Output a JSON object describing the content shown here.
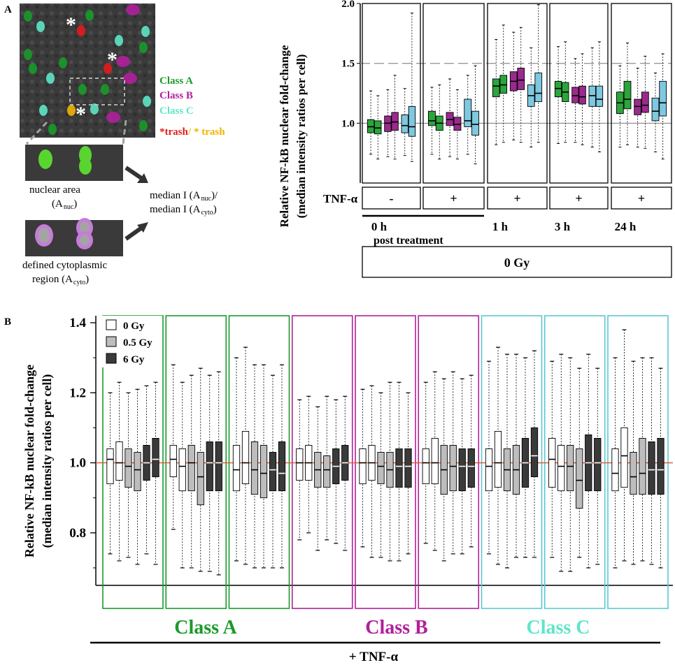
{
  "panel_a": {
    "label": "A",
    "legend": {
      "class_a": "Class A",
      "class_b": "Class B",
      "class_c": "Class C",
      "trash_red": "*trash",
      "trash_sep": "/",
      "trash_yellow": "* trash"
    },
    "nuclear_area_label": "nuclear area",
    "nuclear_area_sym": "(A",
    "nuclear_area_sub": "nuc",
    "cyto_label": "defined cytoplasmic",
    "cyto_label2": "region (A",
    "cyto_sub": "cyto",
    "formula_line1_a": "median I (A",
    "formula_line1_sub": "nuc",
    "formula_line1_b": ")/",
    "formula_line2_a": "median I (A",
    "formula_line2_sub": "cyto",
    "formula_line2_b": ")",
    "colors": {
      "class_a": "#1a9a2a",
      "class_b": "#b0209b",
      "class_c": "#5ee6c8",
      "trash_red": "#e21b1b",
      "trash_yellow": "#f0b400"
    }
  },
  "chart_data": [
    {
      "id": "panel_a_chart",
      "type": "box",
      "ylabel_line1": "Relative NF-kB nuclear fold-change",
      "ylabel_line2": "(median intensity ratios per cell)",
      "ylim": [
        0.5,
        2.0
      ],
      "yticks": [
        "1.0",
        "1.5",
        "2.0"
      ],
      "ytick_values": [
        1.0,
        1.5,
        2.0
      ],
      "reference_lines": [
        1.0,
        1.5
      ],
      "tnf_label": "TNF-α",
      "groups": [
        {
          "tnf": "-",
          "time": "0 h"
        },
        {
          "tnf": "+",
          "time": ""
        },
        {
          "tnf": "+",
          "time": "1 h"
        },
        {
          "tnf": "+",
          "time": "3 h"
        },
        {
          "tnf": "+",
          "time": "24 h"
        }
      ],
      "time_sublabel": "post treatment",
      "dose_label": "0 Gy",
      "series_classes": [
        "A",
        "A",
        "B",
        "B",
        "C",
        "C"
      ],
      "boxes": [
        [
          [
            0.74,
            0.92,
            0.97,
            1.03,
            1.27
          ],
          [
            0.7,
            0.91,
            0.96,
            1.02,
            1.23
          ],
          [
            0.72,
            0.93,
            1.0,
            1.06,
            1.28
          ],
          [
            0.7,
            0.94,
            1.01,
            1.09,
            1.4
          ],
          [
            0.73,
            0.92,
            0.98,
            1.07,
            1.29
          ],
          [
            0.68,
            0.89,
            0.97,
            1.14,
            1.92
          ]
        ],
        [
          [
            0.74,
            0.98,
            1.02,
            1.1,
            1.3
          ],
          [
            0.7,
            0.94,
            1.0,
            1.06,
            1.32
          ],
          [
            0.72,
            0.98,
            1.03,
            1.09,
            1.37
          ],
          [
            0.7,
            0.94,
            0.99,
            1.05,
            1.28
          ],
          [
            0.74,
            0.97,
            1.02,
            1.2,
            1.4
          ],
          [
            0.66,
            0.9,
            0.99,
            1.1,
            1.48
          ]
        ],
        [
          [
            0.82,
            1.22,
            1.31,
            1.37,
            1.7
          ],
          [
            0.84,
            1.25,
            1.32,
            1.4,
            1.82
          ],
          [
            0.86,
            1.27,
            1.35,
            1.43,
            1.76
          ],
          [
            0.84,
            1.28,
            1.36,
            1.46,
            1.8
          ],
          [
            0.8,
            1.14,
            1.23,
            1.32,
            1.63
          ],
          [
            0.84,
            1.18,
            1.25,
            1.42,
            1.99
          ]
        ],
        [
          [
            0.83,
            1.22,
            1.29,
            1.35,
            1.64
          ],
          [
            0.84,
            1.18,
            1.26,
            1.34,
            1.68
          ],
          [
            0.84,
            1.17,
            1.23,
            1.3,
            1.54
          ],
          [
            0.82,
            1.16,
            1.22,
            1.31,
            1.58
          ],
          [
            0.8,
            1.14,
            1.23,
            1.31,
            1.63
          ],
          [
            0.76,
            1.14,
            1.2,
            1.31,
            1.68
          ]
        ],
        [
          [
            0.8,
            1.08,
            1.17,
            1.26,
            1.48
          ],
          [
            0.82,
            1.12,
            1.2,
            1.35,
            1.67
          ],
          [
            0.8,
            1.07,
            1.14,
            1.2,
            1.46
          ],
          [
            0.79,
            1.09,
            1.15,
            1.26,
            1.56
          ],
          [
            0.76,
            1.02,
            1.1,
            1.21,
            1.42
          ],
          [
            0.7,
            1.06,
            1.17,
            1.35,
            1.58
          ]
        ]
      ]
    },
    {
      "id": "panel_b_chart",
      "type": "box",
      "ylabel_line1": "Relative NF-kB nuclear fold-change",
      "ylabel_line2": "(median intensity ratios per cell)",
      "ylim": [
        0.65,
        1.42
      ],
      "yticks": [
        "0.8",
        "1.0",
        "1.2",
        "1.4"
      ],
      "ytick_values": [
        0.8,
        1.0,
        1.2,
        1.4
      ],
      "reference_lines": [
        1.0
      ],
      "legend": [
        "0 Gy",
        "0.5 Gy",
        "6 Gy"
      ],
      "legend_colors": [
        "#ffffff",
        "#bdbdbd",
        "#3a3a3a"
      ],
      "classes": [
        "Class A",
        "Class B",
        "Class C"
      ],
      "class_colors": [
        "#1a9a2a",
        "#b0209b",
        "#5cc8d0"
      ],
      "class_label_colors": [
        "#1a9a2a",
        "#b0209b",
        "#5ee6c8"
      ],
      "bottom_label": "+ TNF-α",
      "boxes": [
        [
          [
            0.74,
            0.94,
            1.01,
            1.04,
            1.2
          ],
          [
            0.72,
            0.95,
            1.0,
            1.06,
            1.23
          ],
          [
            0.73,
            0.93,
            0.99,
            1.04,
            1.2
          ],
          [
            0.71,
            0.92,
            0.98,
            1.03,
            1.21
          ],
          [
            0.74,
            0.95,
            1.0,
            1.05,
            1.22
          ],
          [
            0.71,
            0.96,
            1.01,
            1.07,
            1.23
          ]
        ],
        [
          [
            0.81,
            0.96,
            1.01,
            1.05,
            1.28
          ],
          [
            0.7,
            0.92,
            0.99,
            1.04,
            1.23
          ],
          [
            0.7,
            0.92,
            1.0,
            1.05,
            1.25
          ],
          [
            0.69,
            0.88,
            0.96,
            1.03,
            1.27
          ],
          [
            0.69,
            0.92,
            1.0,
            1.06,
            1.25
          ],
          [
            0.68,
            0.92,
            1.0,
            1.06,
            1.26
          ]
        ],
        [
          [
            0.72,
            0.92,
            0.98,
            1.05,
            1.3
          ],
          [
            0.71,
            0.94,
            1.0,
            1.09,
            1.33
          ],
          [
            0.7,
            0.91,
            0.98,
            1.06,
            1.28
          ],
          [
            0.7,
            0.9,
            0.97,
            1.05,
            1.28
          ],
          [
            0.7,
            0.92,
            0.98,
            1.03,
            1.25
          ],
          [
            0.7,
            0.92,
            0.97,
            1.06,
            1.28
          ]
        ],
        [
          [
            0.78,
            0.95,
            1.0,
            1.04,
            1.18
          ],
          [
            0.8,
            0.95,
            1.0,
            1.05,
            1.19
          ],
          [
            0.75,
            0.93,
            0.98,
            1.03,
            1.16
          ],
          [
            0.78,
            0.93,
            0.98,
            1.02,
            1.19
          ],
          [
            0.77,
            0.94,
            0.99,
            1.04,
            1.18
          ],
          [
            0.75,
            0.95,
            1.0,
            1.05,
            1.19
          ]
        ],
        [
          [
            0.76,
            0.94,
            1.0,
            1.04,
            1.21
          ],
          [
            0.73,
            0.95,
            1.0,
            1.05,
            1.22
          ],
          [
            0.73,
            0.94,
            0.99,
            1.03,
            1.2
          ],
          [
            0.72,
            0.93,
            0.98,
            1.03,
            1.23
          ],
          [
            0.72,
            0.93,
            0.99,
            1.04,
            1.23
          ],
          [
            0.74,
            0.93,
            0.99,
            1.04,
            1.2
          ]
        ],
        [
          [
            0.77,
            0.94,
            1.0,
            1.04,
            1.23
          ],
          [
            0.75,
            0.94,
            1.0,
            1.07,
            1.26
          ],
          [
            0.72,
            0.91,
            0.98,
            1.05,
            1.24
          ],
          [
            0.74,
            0.92,
            0.99,
            1.05,
            1.26
          ],
          [
            0.74,
            0.92,
            0.99,
            1.04,
            1.24
          ],
          [
            0.76,
            0.93,
            0.99,
            1.04,
            1.25
          ]
        ],
        [
          [
            0.74,
            0.92,
            0.99,
            1.04,
            1.29
          ],
          [
            0.71,
            0.93,
            1.0,
            1.09,
            1.33
          ],
          [
            0.7,
            0.92,
            0.98,
            1.04,
            1.31
          ],
          [
            0.73,
            0.91,
            0.98,
            1.05,
            1.31
          ],
          [
            0.73,
            0.93,
            1.0,
            1.07,
            1.3
          ],
          [
            0.73,
            0.96,
            1.02,
            1.1,
            1.32
          ]
        ],
        [
          [
            0.73,
            0.93,
            1.01,
            1.07,
            1.29
          ],
          [
            0.69,
            0.92,
            0.99,
            1.05,
            1.31
          ],
          [
            0.69,
            0.92,
            0.99,
            1.05,
            1.3
          ],
          [
            0.73,
            0.87,
            0.95,
            1.04,
            1.27
          ],
          [
            0.7,
            0.92,
            1.0,
            1.08,
            1.31
          ],
          [
            0.71,
            0.92,
            1.0,
            1.07,
            1.27
          ]
        ],
        [
          [
            0.7,
            0.92,
            0.97,
            1.04,
            1.3
          ],
          [
            0.72,
            0.93,
            1.02,
            1.1,
            1.38
          ],
          [
            0.71,
            0.91,
            0.96,
            1.03,
            1.29
          ],
          [
            0.72,
            0.91,
            0.97,
            1.07,
            1.3
          ],
          [
            0.71,
            0.91,
            0.98,
            1.06,
            1.3
          ],
          [
            0.7,
            0.91,
            0.98,
            1.07,
            1.27
          ]
        ]
      ]
    }
  ]
}
